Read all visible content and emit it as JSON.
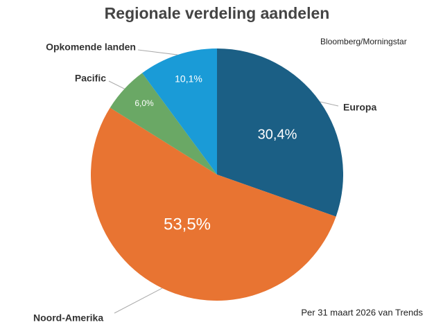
{
  "chart_data": {
    "type": "pie",
    "title": "Regionale verdeling aandelen",
    "source": "Bloomberg/Morningstar",
    "note": "Per 31 maart 2026 van Trends",
    "categories": [
      "Europa",
      "Noord-Amerika",
      "Pacific",
      "Opkomende landen"
    ],
    "values": [
      30.4,
      53.5,
      6.0,
      10.1
    ],
    "value_labels": [
      "30,4%",
      "53,5%",
      "6,0%",
      "10,1%"
    ],
    "colors": [
      "#1b5f85",
      "#e87432",
      "#6aa865",
      "#1a9bd7"
    ]
  }
}
